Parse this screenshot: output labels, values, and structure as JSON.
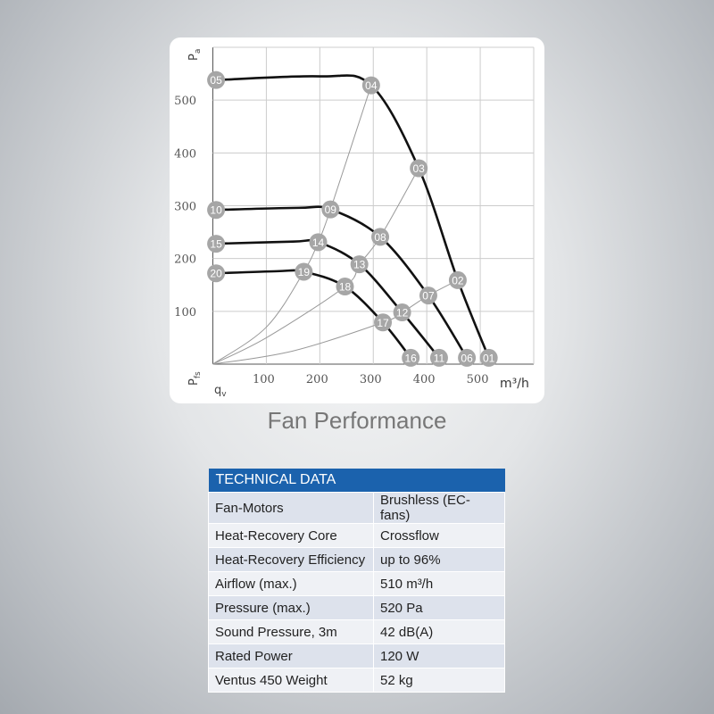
{
  "chart_data": {
    "type": "line",
    "title": "Fan Performance",
    "xlabel": "q_v",
    "xunit": "m³/h",
    "ylabel_top": "P_a",
    "ylabel_bottom": "P_fs",
    "xlim": [
      0,
      600
    ],
    "ylim": [
      0,
      600
    ],
    "xticks": [
      100,
      200,
      300,
      400,
      500
    ],
    "yticks": [
      100,
      200,
      300,
      400,
      500
    ],
    "grid": true,
    "fan_curves": [
      {
        "points": [
          [
            "05",
            6,
            538
          ],
          [
            "04",
            296,
            528
          ],
          [
            "03",
            385,
            371
          ],
          [
            "02",
            458,
            159
          ],
          [
            "01",
            516,
            12
          ]
        ],
        "peak": [
          200,
          545
        ]
      },
      {
        "points": [
          [
            "10",
            6,
            292
          ],
          [
            "09",
            220,
            293
          ],
          [
            "08",
            313,
            241
          ],
          [
            "07",
            403,
            130
          ],
          [
            "06",
            475,
            12
          ]
        ],
        "peak": [
          160,
          296
        ]
      },
      {
        "points": [
          [
            "15",
            6,
            228
          ],
          [
            "14",
            197,
            231
          ],
          [
            "13",
            274,
            189
          ],
          [
            "12",
            354,
            98
          ],
          [
            "11",
            423,
            12
          ]
        ],
        "peak": [
          150,
          232
        ]
      },
      {
        "points": [
          [
            "20",
            6,
            172
          ],
          [
            "19",
            170,
            175
          ],
          [
            "18",
            247,
            147
          ],
          [
            "17",
            318,
            79
          ],
          [
            "16",
            370,
            12
          ]
        ],
        "peak": [
          120,
          176
        ]
      }
    ],
    "system_curves": [
      [
        [
          0,
          0
        ],
        [
          100,
          70
        ],
        [
          170,
          175
        ],
        [
          197,
          231
        ],
        [
          220,
          293
        ],
        [
          296,
          528
        ]
      ],
      [
        [
          0,
          0
        ],
        [
          100,
          50
        ],
        [
          247,
          147
        ],
        [
          274,
          189
        ],
        [
          313,
          241
        ],
        [
          385,
          371
        ]
      ],
      [
        [
          0,
          0
        ],
        [
          150,
          25
        ],
        [
          318,
          79
        ],
        [
          354,
          98
        ],
        [
          403,
          130
        ],
        [
          458,
          159
        ]
      ]
    ],
    "colors": {
      "curve": "#111111",
      "system": "#999999",
      "marker": "#a6a6a6",
      "grid": "#cccccc"
    }
  },
  "table": {
    "header": "TECHNICAL DATA",
    "rows": [
      [
        "Fan-Motors",
        "Brushless (EC-fans)"
      ],
      [
        "Heat-Recovery Core",
        "Crossflow"
      ],
      [
        "Heat-Recovery Efficiency",
        "up to 96%"
      ],
      [
        "Airflow (max.)",
        "510 m³/h"
      ],
      [
        "Pressure (max.)",
        "520 Pa"
      ],
      [
        "Sound Pressure, 3m",
        "42 dB(A)"
      ],
      [
        "Rated Power",
        "120 W"
      ],
      [
        "Ventus 450 Weight",
        "52 kg"
      ]
    ],
    "header_color": "#1b62ad"
  }
}
